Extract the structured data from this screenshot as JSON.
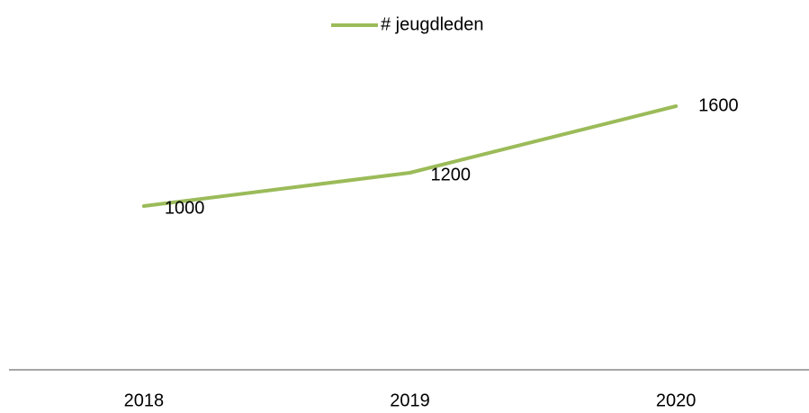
{
  "chart_data": {
    "type": "line",
    "categories": [
      "2018",
      "2019",
      "2020"
    ],
    "series": [
      {
        "name": "# jeugdleden",
        "color": "#9bbb59",
        "values": [
          1000,
          1200,
          1600
        ]
      }
    ],
    "ylim": [
      0,
      2000
    ],
    "legend": "top"
  }
}
